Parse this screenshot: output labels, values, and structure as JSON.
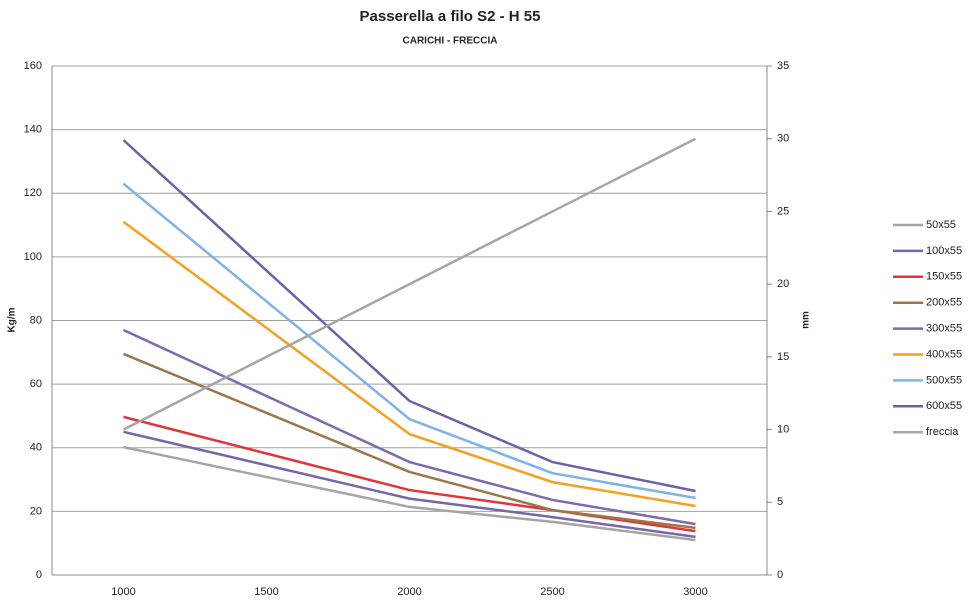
{
  "chart_data": {
    "type": "line",
    "title": "Passerella a filo S2 - H 55",
    "subtitle": "CARICHI - FRECCIA",
    "y_label": "Kg/m",
    "y2_label": "mm",
    "x": [
      1000,
      2000,
      2500,
      3000
    ],
    "xlim": [
      750,
      3250
    ],
    "xticks": [
      1000,
      1500,
      2000,
      2500,
      3000
    ],
    "ylim": [
      0,
      160
    ],
    "yticks": [
      0,
      20,
      40,
      60,
      80,
      100,
      120,
      140,
      160
    ],
    "y2lim": [
      0,
      35
    ],
    "y2ticks": [
      0,
      5,
      10,
      15,
      20,
      25,
      30,
      35
    ],
    "grid": true,
    "legend": "right",
    "series": [
      {
        "name": "50x55",
        "color": "#a5a5a5",
        "values": [
          40.2,
          21.4,
          16.7,
          11
        ]
      },
      {
        "name": "100x55",
        "color": "#7a65a8",
        "values": [
          45,
          24,
          18.2,
          12
        ]
      },
      {
        "name": "150x55",
        "color": "#e2353a",
        "values": [
          49.7,
          26.7,
          20.4,
          13.8
        ]
      },
      {
        "name": "200x55",
        "color": "#9b7648",
        "values": [
          69.5,
          32.4,
          20.4,
          14.8
        ]
      },
      {
        "name": "300x55",
        "color": "#7d6aab",
        "values": [
          77,
          35.5,
          23.6,
          16
        ]
      },
      {
        "name": "400x55",
        "color": "#f5a020",
        "values": [
          111,
          44.3,
          29.2,
          21.7
        ]
      },
      {
        "name": "500x55",
        "color": "#7db3e6",
        "values": [
          123,
          49,
          32,
          24.2
        ]
      },
      {
        "name": "600x55",
        "color": "#6f60a6",
        "values": [
          136.7,
          54.7,
          35.5,
          26.4
        ]
      },
      {
        "name": "freccia",
        "color": "#a6a6a6",
        "axis": "y2",
        "values": [
          10,
          20,
          25,
          30
        ]
      }
    ]
  }
}
